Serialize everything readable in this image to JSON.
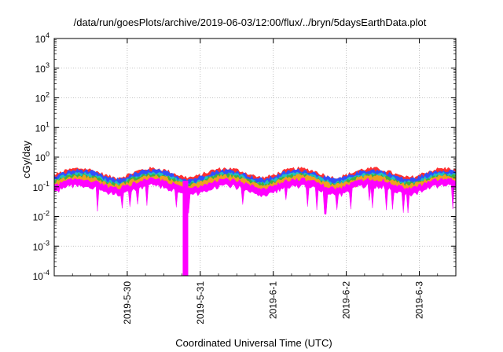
{
  "chart_data": {
    "type": "area",
    "title": "/data/run/goesPlots/archive/2019-06-03/12:00/flux/../bryn/5daysEarthData.plot",
    "xlabel": "Coordinated Universal Time (UTC)",
    "ylabel": "cGy/day",
    "y_scale": "log",
    "ylim": [
      0.0001,
      10000
    ],
    "y_ticks": [
      {
        "value": 10000,
        "base": "10",
        "exp": "4"
      },
      {
        "value": 1000,
        "base": "10",
        "exp": "3"
      },
      {
        "value": 100,
        "base": "10",
        "exp": "2"
      },
      {
        "value": 10,
        "base": "10",
        "exp": "1"
      },
      {
        "value": 1,
        "base": "10",
        "exp": "0"
      },
      {
        "value": 0.1,
        "base": "10",
        "exp": "-1"
      },
      {
        "value": 0.01,
        "base": "10",
        "exp": "-2"
      },
      {
        "value": 0.001,
        "base": "10",
        "exp": "-3"
      },
      {
        "value": 0.0001,
        "base": "10",
        "exp": "-4"
      }
    ],
    "xlim": [
      "2019-05-29 00:00",
      "2019-06-03 12:00"
    ],
    "x_ticks": [
      "2019-5-30",
      "2019-5-31",
      "2019-6-1",
      "2019-6-2",
      "2019-6-3"
    ],
    "x_tick_dates": [
      "2019-05-30",
      "2019-05-31",
      "2019-06-01",
      "2019-06-02",
      "2019-06-03"
    ],
    "grid": true,
    "series": [
      {
        "color": "#ff3030",
        "level": 0.32
      },
      {
        "color": "#3050ff",
        "level": 0.28
      },
      {
        "color": "#20c0c0",
        "level": 0.22
      },
      {
        "color": "#40b040",
        "level": 0.2
      },
      {
        "color": "#f0a020",
        "level": 0.18
      },
      {
        "color": "#ff00ff",
        "level": 0.14
      }
    ],
    "events": [
      {
        "date": "2019-05-30 19:00",
        "min_value": 0.0001,
        "note": "magenta dropout"
      }
    ]
  }
}
